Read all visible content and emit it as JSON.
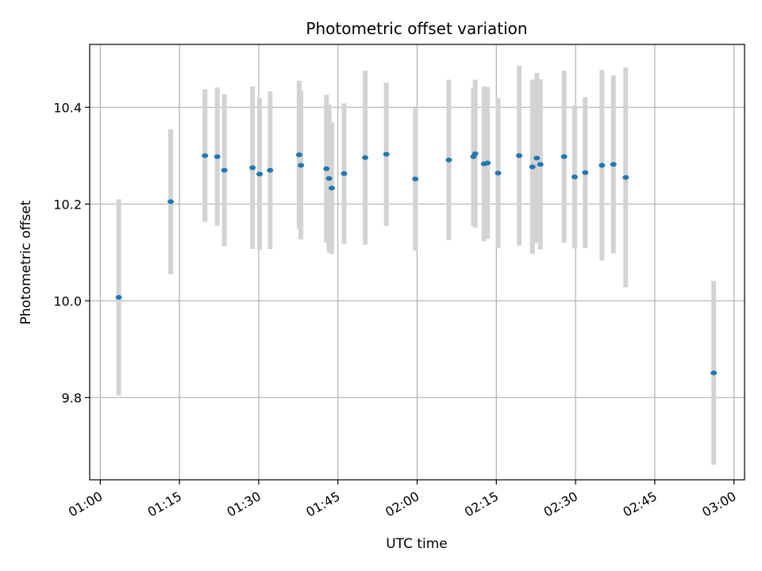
{
  "chart_data": {
    "type": "scatter",
    "title": "Photometric offset variation",
    "xlabel": "UTC time",
    "ylabel": "Photometric offset",
    "x_ticks": [
      "01:00",
      "01:15",
      "01:30",
      "01:45",
      "02:00",
      "02:15",
      "02:30",
      "02:45",
      "03:00"
    ],
    "y_ticks": [
      "9.8",
      "10.0",
      "10.2",
      "10.4"
    ],
    "xlim": [
      "00:58:00",
      "03:02:00"
    ],
    "ylim": [
      9.63,
      10.53
    ],
    "grid": true,
    "colors": {
      "point": "#1f77b4",
      "errorbar": "#d3d3d3",
      "grid": "#b0b0b0"
    },
    "points": [
      {
        "t": "01:03:30",
        "y": 10.007,
        "err": 0.203
      },
      {
        "t": "01:13:20",
        "y": 10.205,
        "err": 0.15
      },
      {
        "t": "01:19:50",
        "y": 10.3,
        "err": 0.137
      },
      {
        "t": "01:22:10",
        "y": 10.298,
        "err": 0.143
      },
      {
        "t": "01:23:30",
        "y": 10.27,
        "err": 0.157
      },
      {
        "t": "01:28:50",
        "y": 10.275,
        "err": 0.168
      },
      {
        "t": "01:30:10",
        "y": 10.262,
        "err": 0.157
      },
      {
        "t": "01:32:10",
        "y": 10.27,
        "err": 0.163
      },
      {
        "t": "01:37:40",
        "y": 10.302,
        "err": 0.153
      },
      {
        "t": "01:38:00",
        "y": 10.28,
        "err": 0.153
      },
      {
        "t": "01:42:50",
        "y": 10.273,
        "err": 0.153
      },
      {
        "t": "01:43:20",
        "y": 10.253,
        "err": 0.153
      },
      {
        "t": "01:43:50",
        "y": 10.233,
        "err": 0.136
      },
      {
        "t": "01:46:10",
        "y": 10.263,
        "err": 0.145
      },
      {
        "t": "01:50:10",
        "y": 10.296,
        "err": 0.18
      },
      {
        "t": "01:54:10",
        "y": 10.303,
        "err": 0.148
      },
      {
        "t": "01:59:40",
        "y": 10.252,
        "err": 0.148
      },
      {
        "t": "02:06:00",
        "y": 10.291,
        "err": 0.166
      },
      {
        "t": "02:10:40",
        "y": 10.298,
        "err": 0.143
      },
      {
        "t": "02:11:00",
        "y": 10.304,
        "err": 0.153
      },
      {
        "t": "02:12:40",
        "y": 10.283,
        "err": 0.16
      },
      {
        "t": "02:13:20",
        "y": 10.285,
        "err": 0.157
      },
      {
        "t": "02:15:20",
        "y": 10.264,
        "err": 0.155
      },
      {
        "t": "02:19:20",
        "y": 10.3,
        "err": 0.186
      },
      {
        "t": "02:21:50",
        "y": 10.277,
        "err": 0.18
      },
      {
        "t": "02:22:40",
        "y": 10.295,
        "err": 0.176
      },
      {
        "t": "02:23:20",
        "y": 10.282,
        "err": 0.176
      },
      {
        "t": "02:27:50",
        "y": 10.298,
        "err": 0.178
      },
      {
        "t": "02:29:50",
        "y": 10.256,
        "err": 0.148
      },
      {
        "t": "02:31:50",
        "y": 10.265,
        "err": 0.156
      },
      {
        "t": "02:35:00",
        "y": 10.28,
        "err": 0.197
      },
      {
        "t": "02:37:10",
        "y": 10.282,
        "err": 0.184
      },
      {
        "t": "02:39:30",
        "y": 10.255,
        "err": 0.227
      },
      {
        "t": "02:56:10",
        "y": 9.851,
        "err": 0.19
      }
    ]
  }
}
